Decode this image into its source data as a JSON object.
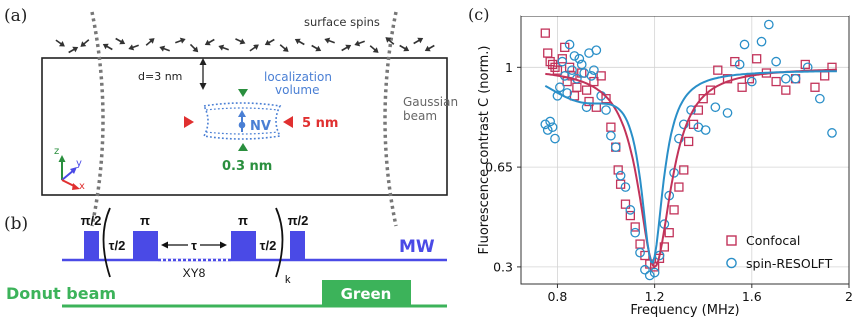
{
  "panels": {
    "a": {
      "label": "(a)",
      "surface_spins": "surface spins",
      "depth": "d=3 nm",
      "localization_line1": "localization",
      "localization_line2": "volume",
      "nv": "NV",
      "lateral_size": "5 nm",
      "axial_size": "0.3 nm",
      "beam_line1": "Gaussian",
      "beam_line2": "beam",
      "axes": {
        "z": "z",
        "y": "y",
        "x": "x"
      }
    },
    "b": {
      "label": "(b)",
      "pi_half_1": "π/2",
      "pi_1": "π",
      "pi_2": "π",
      "pi_half_2": "π/2",
      "tau_half_1": "τ/2",
      "tau": "τ",
      "tau_half_2": "τ/2",
      "xy8": "XY8",
      "k": "k",
      "mw": "MW",
      "donut": "Donut beam",
      "green": "Green"
    },
    "c": {
      "label": "(c)"
    }
  },
  "colors": {
    "mw_blue": "#4a4ae6",
    "green": "#3cb35a",
    "green_dark": "#2a8f3e",
    "red": "#e03030",
    "nv_blue": "#4a7fd4",
    "confocal": "#c2335a",
    "resolft": "#2a8fc8",
    "gray": "#666666"
  },
  "chart_data": {
    "type": "scatter",
    "title": "",
    "xlabel": "Frequency (MHz)",
    "ylabel": "Fluorescence contrast C (norm.)",
    "xlim": [
      0.65,
      2.0
    ],
    "ylim": [
      0.24,
      1.18
    ],
    "xticks": [
      0.8,
      1.2,
      1.6,
      2.0
    ],
    "xtick_labels": [
      "0.8",
      "1.2",
      "1.6",
      "2"
    ],
    "yticks": [
      0.3,
      0.65,
      1.0
    ],
    "ytick_labels": [
      "0.3",
      "0.65",
      "1"
    ],
    "legend_position": "bottom-right",
    "series": [
      {
        "name": "Confocal",
        "marker": "square",
        "color": "#c2335a",
        "points": [
          [
            0.75,
            1.12
          ],
          [
            0.76,
            1.05
          ],
          [
            0.77,
            1.02
          ],
          [
            0.78,
            1.01
          ],
          [
            0.79,
            1.0
          ],
          [
            0.8,
            0.99
          ],
          [
            0.82,
            1.03
          ],
          [
            0.83,
            1.07
          ],
          [
            0.84,
            0.95
          ],
          [
            0.85,
            1.0
          ],
          [
            0.86,
            0.97
          ],
          [
            0.87,
            0.9
          ],
          [
            0.88,
            0.93
          ],
          [
            0.9,
            0.98
          ],
          [
            0.92,
            0.92
          ],
          [
            0.93,
            0.88
          ],
          [
            0.95,
            0.95
          ],
          [
            0.96,
            0.86
          ],
          [
            0.98,
            0.97
          ],
          [
            1.0,
            0.89
          ],
          [
            1.02,
            0.79
          ],
          [
            1.04,
            0.72
          ],
          [
            1.05,
            0.64
          ],
          [
            1.06,
            0.59
          ],
          [
            1.08,
            0.52
          ],
          [
            1.1,
            0.48
          ],
          [
            1.12,
            0.44
          ],
          [
            1.14,
            0.38
          ],
          [
            1.16,
            0.34
          ],
          [
            1.18,
            0.31
          ],
          [
            1.2,
            0.3
          ],
          [
            1.22,
            0.33
          ],
          [
            1.24,
            0.37
          ],
          [
            1.26,
            0.42
          ],
          [
            1.28,
            0.5
          ],
          [
            1.3,
            0.58
          ],
          [
            1.32,
            0.64
          ],
          [
            1.34,
            0.74
          ],
          [
            1.36,
            0.8
          ],
          [
            1.38,
            0.85
          ],
          [
            1.4,
            0.89
          ],
          [
            1.43,
            0.92
          ],
          [
            1.46,
            0.99
          ],
          [
            1.5,
            0.96
          ],
          [
            1.53,
            1.02
          ],
          [
            1.56,
            0.93
          ],
          [
            1.59,
            0.96
          ],
          [
            1.62,
            1.03
          ],
          [
            1.66,
            0.98
          ],
          [
            1.7,
            0.95
          ],
          [
            1.74,
            0.92
          ],
          [
            1.78,
            0.96
          ],
          [
            1.82,
            1.01
          ],
          [
            1.86,
            0.93
          ],
          [
            1.9,
            0.97
          ],
          [
            1.93,
            1.0
          ]
        ]
      },
      {
        "name": "spin-RESOLFT",
        "marker": "circle",
        "color": "#2a8fc8",
        "points": [
          [
            0.75,
            0.8
          ],
          [
            0.76,
            0.78
          ],
          [
            0.77,
            0.81
          ],
          [
            0.78,
            0.79
          ],
          [
            0.79,
            0.75
          ],
          [
            0.8,
            0.9
          ],
          [
            0.81,
            0.93
          ],
          [
            0.82,
            1.02
          ],
          [
            0.83,
            0.97
          ],
          [
            0.84,
            0.91
          ],
          [
            0.85,
            1.08
          ],
          [
            0.86,
            0.99
          ],
          [
            0.87,
            1.04
          ],
          [
            0.88,
            0.96
          ],
          [
            0.89,
            1.03
          ],
          [
            0.9,
            1.01
          ],
          [
            0.91,
            0.98
          ],
          [
            0.92,
            0.86
          ],
          [
            0.93,
            1.05
          ],
          [
            0.94,
            0.97
          ],
          [
            0.95,
            0.99
          ],
          [
            0.96,
            1.06
          ],
          [
            0.98,
            0.9
          ],
          [
            1.0,
            0.85
          ],
          [
            1.02,
            0.76
          ],
          [
            1.04,
            0.72
          ],
          [
            1.06,
            0.62
          ],
          [
            1.08,
            0.58
          ],
          [
            1.1,
            0.5
          ],
          [
            1.12,
            0.42
          ],
          [
            1.14,
            0.35
          ],
          [
            1.16,
            0.29
          ],
          [
            1.18,
            0.27
          ],
          [
            1.2,
            0.28
          ],
          [
            1.22,
            0.34
          ],
          [
            1.24,
            0.45
          ],
          [
            1.26,
            0.55
          ],
          [
            1.28,
            0.63
          ],
          [
            1.3,
            0.75
          ],
          [
            1.32,
            0.8
          ],
          [
            1.35,
            0.85
          ],
          [
            1.38,
            0.79
          ],
          [
            1.41,
            0.78
          ],
          [
            1.45,
            0.86
          ],
          [
            1.5,
            0.84
          ],
          [
            1.55,
            1.01
          ],
          [
            1.57,
            1.08
          ],
          [
            1.6,
            0.95
          ],
          [
            1.64,
            1.09
          ],
          [
            1.67,
            1.15
          ],
          [
            1.7,
            1.02
          ],
          [
            1.74,
            0.96
          ],
          [
            1.78,
            0.96
          ],
          [
            1.83,
            1.0
          ],
          [
            1.88,
            0.89
          ],
          [
            1.93,
            0.77
          ]
        ]
      }
    ],
    "fit_curves": [
      {
        "series": "Confocal",
        "model": "lorentzian",
        "baseline": 1.0,
        "depth": 0.7,
        "center": 1.2,
        "gamma": 0.083,
        "x_range": [
          0.75,
          1.95
        ]
      },
      {
        "series": "spin-RESOLFT",
        "model": "lorentzian",
        "baseline": 0.99,
        "depth": 0.67,
        "center": 1.19,
        "gamma": 0.055,
        "slope": 0.09,
        "x_range": [
          0.75,
          1.95
        ]
      }
    ]
  }
}
